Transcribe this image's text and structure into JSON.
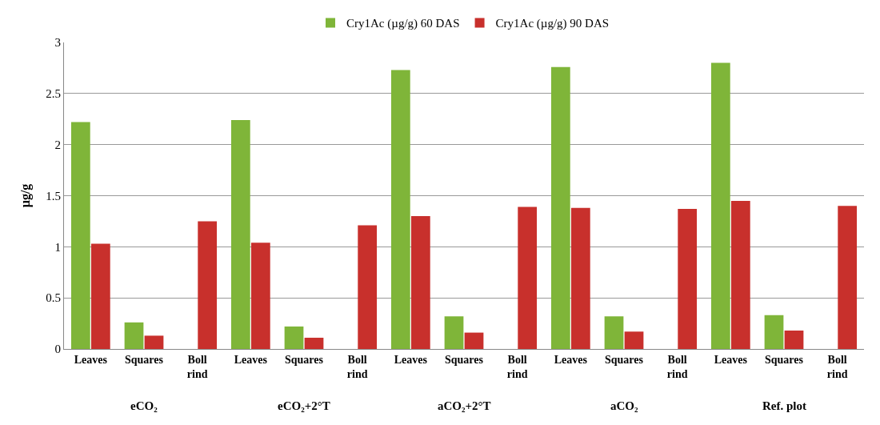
{
  "chart_data": {
    "type": "bar",
    "ylabel": "µg/g",
    "categories": [
      "Leaves",
      "Squares",
      "Boll rind",
      "Leaves",
      "Squares",
      "Boll rind",
      "Leaves",
      "Squares",
      "Boll rind",
      "Leaves",
      "Squares",
      "Boll rind",
      "Leaves",
      "Squares",
      "Boll rind"
    ],
    "annotations": [
      "eCO₂",
      "eCO₂+2°T",
      "aCO₂+2°T",
      "aCO₂",
      "Ref. plot"
    ],
    "series": [
      {
        "name": "Cry1Ac (µg/g) 60 DAS",
        "color": "#7fb539",
        "values": [
          2.22,
          0.26,
          0,
          2.24,
          0.22,
          0,
          2.73,
          0.32,
          0,
          2.76,
          0.32,
          0,
          2.8,
          0.33,
          0
        ]
      },
      {
        "name": "Cry1Ac (µg/g) 90 DAS",
        "color": "#c8302c",
        "values": [
          1.03,
          0.13,
          1.25,
          1.04,
          0.11,
          1.21,
          1.3,
          0.16,
          1.39,
          1.38,
          0.17,
          1.37,
          1.45,
          0.18,
          1.4
        ]
      }
    ],
    "ylim": [
      0,
      3
    ],
    "yticks": [
      0,
      0.5,
      1,
      1.5,
      2,
      2.5,
      3
    ],
    "grid": "y",
    "legend": "top"
  }
}
